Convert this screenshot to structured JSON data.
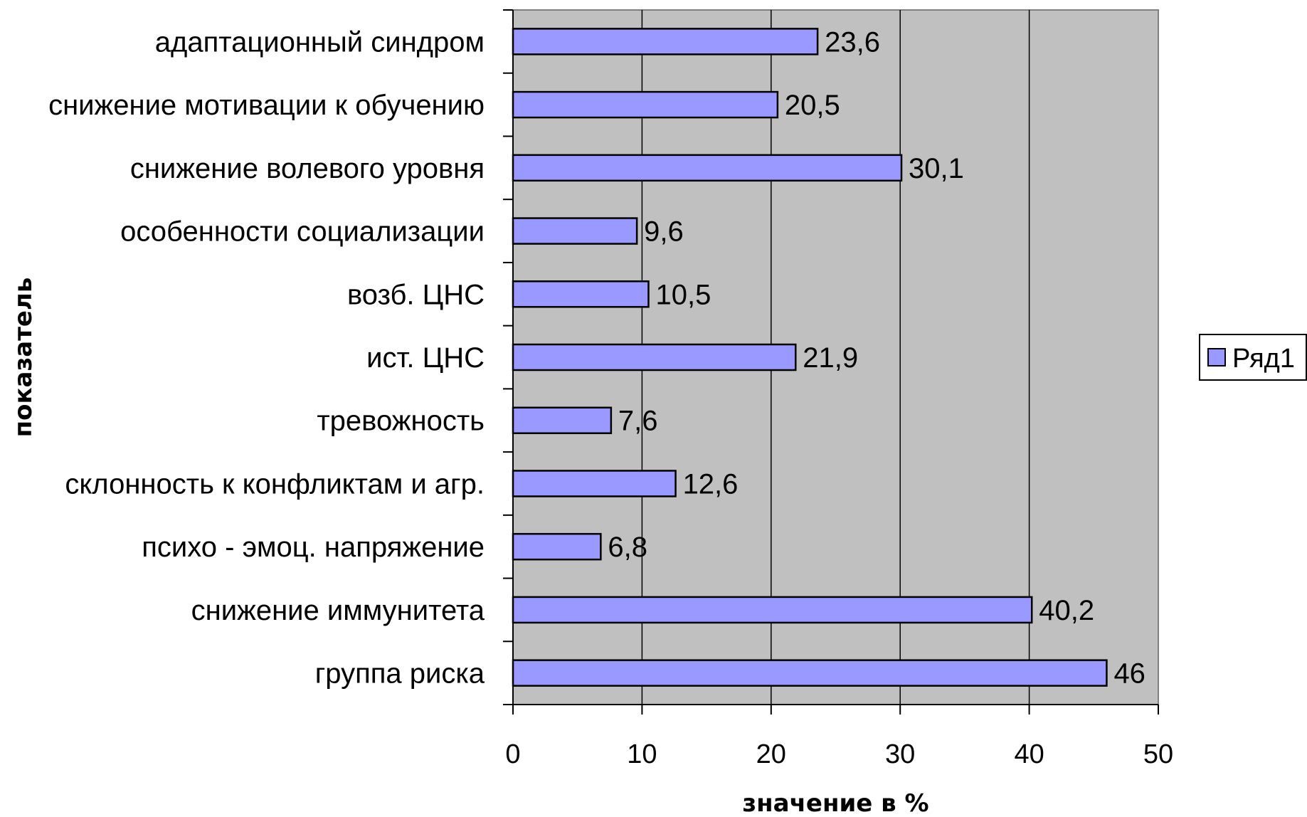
{
  "chart_data": {
    "type": "bar",
    "orientation": "horizontal",
    "categories": [
      "адаптационный синдром",
      "снижение мотивации к обучению",
      "снижение волевого уровня",
      "особенности социализации",
      "возб. ЦНС",
      "ист. ЦНС",
      "тревожность",
      "склонность к конфликтам и агр.",
      "психо - эмоц. напряжение",
      "снижение иммунитета",
      "группа риска"
    ],
    "series": [
      {
        "name": "Ряд1",
        "values": [
          23.6,
          20.5,
          30.1,
          9.6,
          10.5,
          21.9,
          7.6,
          12.6,
          6.8,
          40.2,
          46
        ],
        "data_labels": [
          "23,6",
          "20,5",
          "30,1",
          "9,6",
          "10,5",
          "21,9",
          "7,6",
          "12,6",
          "6,8",
          "40,2",
          "46"
        ]
      }
    ],
    "xticks": [
      0,
      10,
      20,
      30,
      40,
      50
    ],
    "xlim": [
      0,
      50
    ],
    "xlabel": "значение в %",
    "ylabel": "показатель",
    "grid": "vertical",
    "legend": "right",
    "colors": {
      "bar_fill": "#9999ff",
      "bar_stroke": "#000000",
      "plot_bg": "#c0c0c0",
      "grid": "#000000"
    }
  }
}
